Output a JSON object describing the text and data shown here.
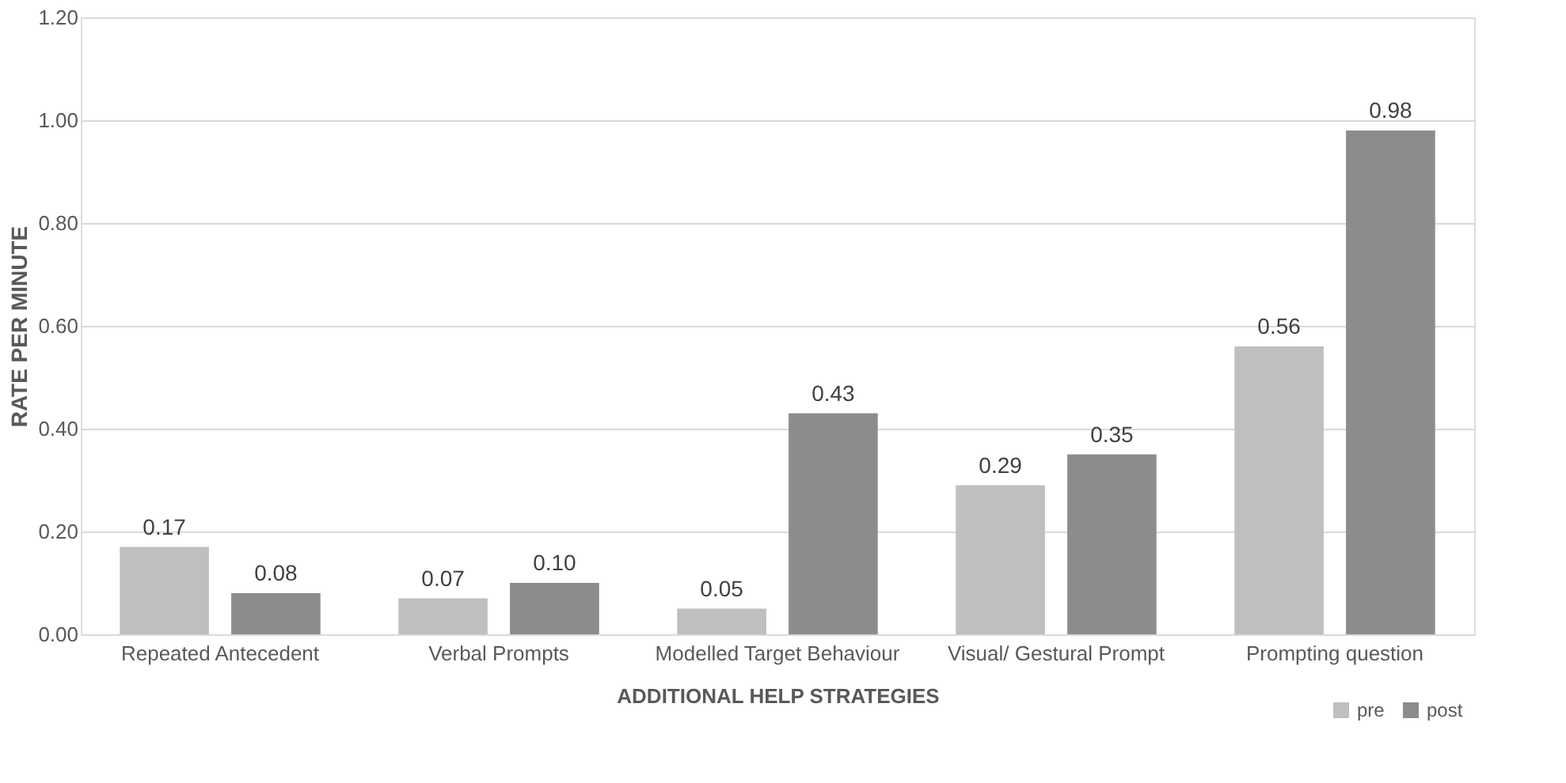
{
  "chart_data": {
    "type": "bar",
    "xlabel": "ADDITIONAL HELP STRATEGIES",
    "ylabel": "RATE PER MINUTE",
    "categories": [
      "Repeated Antecedent",
      "Verbal Prompts",
      "Modelled Target Behaviour",
      "Visual/ Gestural Prompt",
      "Prompting question"
    ],
    "series": [
      {
        "name": "pre",
        "color": "#bfbfbf",
        "values": [
          0.17,
          0.07,
          0.05,
          0.29,
          0.56
        ],
        "value_labels": [
          "0.17",
          "0.07",
          "0.05",
          "0.29",
          "0.56"
        ]
      },
      {
        "name": "post",
        "color": "#8c8c8c",
        "values": [
          0.08,
          0.1,
          0.43,
          0.35,
          0.98
        ],
        "value_labels": [
          "0.08",
          "0.10",
          "0.43",
          "0.35",
          "0.98"
        ]
      }
    ],
    "ylim": [
      0,
      1.2
    ],
    "yticks": [
      {
        "value": 0,
        "label": "0.00"
      },
      {
        "value": 0.2,
        "label": "0.20"
      },
      {
        "value": 0.4,
        "label": "0.40"
      },
      {
        "value": 0.6,
        "label": "0.60"
      },
      {
        "value": 0.8,
        "label": "0.80"
      },
      {
        "value": 1.0,
        "label": "1.00"
      },
      {
        "value": 1.2,
        "label": "1.20"
      }
    ],
    "grid": "y",
    "legend": "bottom right"
  }
}
